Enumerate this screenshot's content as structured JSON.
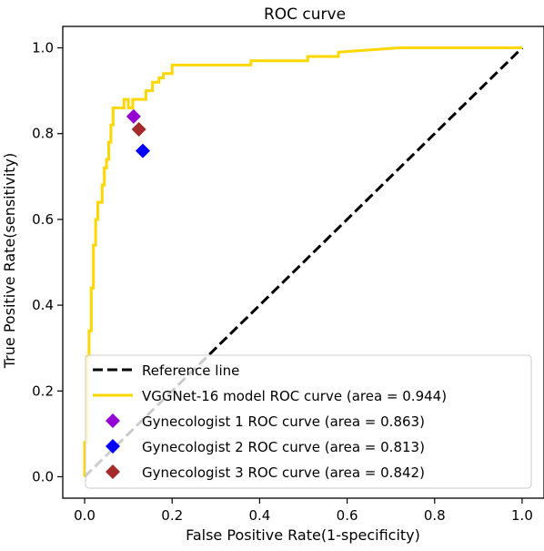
{
  "chart_data": {
    "type": "line",
    "title": "ROC curve",
    "xlabel": "False Positive Rate(1-specificity)",
    "ylabel": "True Positive Rate(sensitivity)",
    "xlim": [
      -0.05,
      1.05
    ],
    "ylim": [
      -0.05,
      1.05
    ],
    "x_ticks": [
      0.0,
      0.2,
      0.4,
      0.6,
      0.8,
      1.0
    ],
    "y_ticks": [
      0.0,
      0.2,
      0.4,
      0.6,
      0.8,
      1.0
    ],
    "x_tick_labels": [
      "0.0",
      "0.2",
      "0.4",
      "0.6",
      "0.8",
      "1.0"
    ],
    "y_tick_labels": [
      "0.0",
      "0.2",
      "0.4",
      "0.6",
      "0.8",
      "1.0"
    ],
    "grid": false,
    "legend_position": "lower-right",
    "series": [
      {
        "name": "Reference line",
        "kind": "line",
        "style": "dashed",
        "color": "#000000",
        "x": [
          0,
          1
        ],
        "y": [
          0,
          1
        ]
      },
      {
        "name": "VGGNet-16 model ROC curve (area = 0.944)",
        "kind": "step-line",
        "style": "solid",
        "color": "#ffd700",
        "x": [
          0,
          0,
          0.005,
          0.005,
          0.01,
          0.01,
          0.015,
          0.015,
          0.02,
          0.02,
          0.025,
          0.025,
          0.03,
          0.03,
          0.04,
          0.04,
          0.045,
          0.045,
          0.05,
          0.05,
          0.055,
          0.055,
          0.06,
          0.06,
          0.065,
          0.065,
          0.09,
          0.09,
          0.1,
          0.1,
          0.11,
          0.11,
          0.14,
          0.14,
          0.155,
          0.155,
          0.17,
          0.17,
          0.18,
          0.18,
          0.2,
          0.2,
          0.38,
          0.38,
          0.51,
          0.51,
          0.58,
          0.58,
          0.72,
          1.0
        ],
        "y": [
          0,
          0.08,
          0.08,
          0.28,
          0.28,
          0.34,
          0.34,
          0.44,
          0.44,
          0.54,
          0.54,
          0.6,
          0.6,
          0.64,
          0.64,
          0.68,
          0.68,
          0.72,
          0.72,
          0.74,
          0.74,
          0.78,
          0.78,
          0.82,
          0.82,
          0.86,
          0.86,
          0.88,
          0.88,
          0.86,
          0.86,
          0.88,
          0.88,
          0.9,
          0.9,
          0.92,
          0.92,
          0.93,
          0.93,
          0.94,
          0.94,
          0.96,
          0.96,
          0.97,
          0.97,
          0.98,
          0.98,
          0.99,
          1.0,
          1.0
        ]
      },
      {
        "name": "Gynecologist 1 ROC curve (area = 0.863)",
        "kind": "point",
        "marker": "diamond",
        "color": "#9400d3",
        "x": [
          0.112
        ],
        "y": [
          0.84
        ]
      },
      {
        "name": "Gynecologist 2 ROC curve (area = 0.813)",
        "kind": "point",
        "marker": "diamond",
        "color": "#0000ff",
        "x": [
          0.133
        ],
        "y": [
          0.76
        ]
      },
      {
        "name": "Gynecologist 3 ROC curve (area = 0.842)",
        "kind": "point",
        "marker": "diamond",
        "color": "#a52a2a",
        "x": [
          0.124
        ],
        "y": [
          0.81
        ]
      }
    ]
  }
}
